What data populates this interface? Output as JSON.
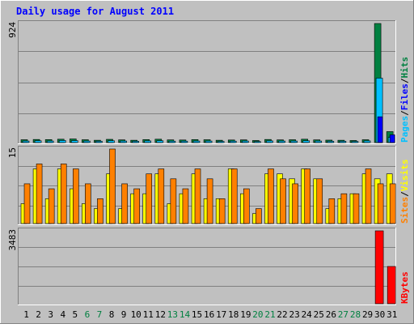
{
  "chart_data": {
    "title": "Daily usage for August 2011",
    "type": "bar",
    "categories": [
      "1",
      "2",
      "3",
      "4",
      "5",
      "6",
      "7",
      "8",
      "9",
      "10",
      "11",
      "12",
      "13",
      "14",
      "15",
      "16",
      "17",
      "18",
      "19",
      "20",
      "21",
      "22",
      "23",
      "24",
      "25",
      "26",
      "27",
      "28",
      "29",
      "30",
      "31"
    ],
    "weekend_days": [
      "6",
      "7",
      "13",
      "14",
      "20",
      "21",
      "27",
      "28"
    ],
    "panels": [
      {
        "id": "hits",
        "ymax_label": "924",
        "ylim": [
          0,
          924
        ],
        "right_labels": [
          {
            "text": "Pages",
            "color": "#00c0ff"
          },
          {
            "text": "/",
            "color": "#000000"
          },
          {
            "text": "Files",
            "color": "#0000ff"
          },
          {
            "text": "/",
            "color": "#000000"
          },
          {
            "text": "Hits",
            "color": "#008040"
          }
        ],
        "series": [
          {
            "name": "Hits",
            "color": "#008040",
            "values": [
              22,
              24,
              23,
              26,
              28,
              22,
              18,
              25,
              21,
              18,
              23,
              26,
              21,
              20,
              23,
              22,
              18,
              20,
              21,
              16,
              24,
              21,
              22,
              26,
              21,
              19,
              18,
              16,
              22,
              924,
              85
            ]
          },
          {
            "name": "Files",
            "color": "#0000ff",
            "values": [
              0,
              0,
              0,
              0,
              0,
              0,
              0,
              0,
              0,
              0,
              0,
              0,
              0,
              0,
              0,
              0,
              0,
              0,
              0,
              0,
              0,
              0,
              0,
              0,
              0,
              0,
              0,
              0,
              0,
              200,
              60
            ]
          },
          {
            "name": "Pages",
            "color": "#00c0ff",
            "values": [
              12,
              14,
              12,
              16,
              15,
              12,
              10,
              14,
              12,
              10,
              13,
              14,
              11,
              11,
              12,
              12,
              9,
              11,
              12,
              8,
              13,
              12,
              12,
              14,
              12,
              10,
              10,
              9,
              13,
              500,
              40
            ]
          }
        ]
      },
      {
        "id": "visits",
        "ymax_label": "15",
        "ylim": [
          0,
          15
        ],
        "right_labels": [
          {
            "text": "Sites",
            "color": "#ff8000"
          },
          {
            "text": "/",
            "color": "#000000"
          },
          {
            "text": "Visits",
            "color": "#ffff00"
          }
        ],
        "series": [
          {
            "name": "Visits",
            "color": "#ffff00",
            "values": [
              4,
              11,
              5,
              11,
              7,
              4,
              3,
              10,
              3,
              6,
              6,
              10,
              4,
              6,
              10,
              5,
              5,
              11,
              6,
              2,
              10,
              10,
              9,
              11,
              9,
              3,
              5,
              6,
              10,
              9,
              10
            ]
          },
          {
            "name": "Sites",
            "color": "#ff8000",
            "values": [
              8,
              12,
              7,
              12,
              11,
              8,
              5,
              15,
              8,
              7,
              10,
              11,
              9,
              7,
              11,
              9,
              5,
              11,
              7,
              3,
              11,
              9,
              8,
              11,
              9,
              5,
              6,
              6,
              11,
              8,
              8
            ]
          }
        ]
      },
      {
        "id": "kbytes",
        "ymax_label": "3483",
        "ylim": [
          0,
          3483
        ],
        "right_labels": [
          {
            "text": "KBytes",
            "color": "#ff0000"
          }
        ],
        "series": [
          {
            "name": "KBytes",
            "color": "#ff0000",
            "values": [
              0,
              0,
              0,
              0,
              0,
              0,
              0,
              0,
              0,
              0,
              0,
              0,
              0,
              0,
              0,
              0,
              0,
              0,
              0,
              0,
              0,
              0,
              0,
              0,
              0,
              0,
              0,
              0,
              0,
              3483,
              1780
            ]
          }
        ]
      }
    ],
    "colors": {
      "page_bg": "#c0c0c0",
      "plot_bg": "#c0c0c0",
      "title_color": "#0000ff",
      "weekday_label": "#000000",
      "weekend_label": "#008040"
    }
  }
}
